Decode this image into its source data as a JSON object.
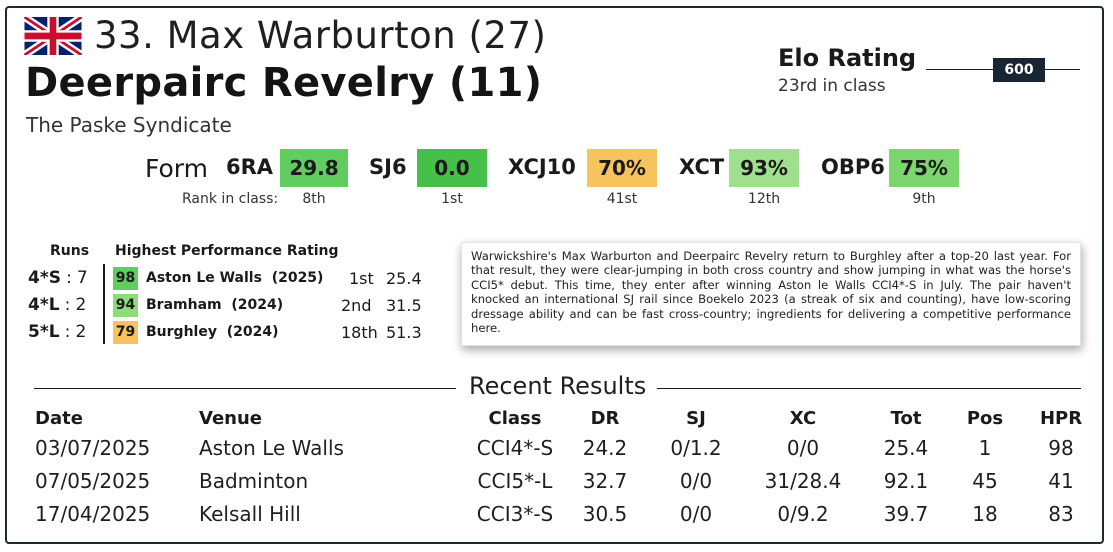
{
  "rider": {
    "title": "33. Max Warburton (27)",
    "country_flag": "uk-flag-icon"
  },
  "horse": {
    "title": "Deerpairc Revelry (11)"
  },
  "owner": "The Paske Syndicate",
  "elo": {
    "title": "Elo Rating",
    "value": "600",
    "rank_text": "23rd in class"
  },
  "form": {
    "label": "Form",
    "rank_label": "Rank in class:",
    "items": [
      {
        "code": "6RA",
        "value": "29.8",
        "rank": "8th",
        "color": "#5fce5f"
      },
      {
        "code": "SJ6",
        "value": "0.0",
        "rank": "1st",
        "color": "#46c04a"
      },
      {
        "code": "XCJ10",
        "value": "70%",
        "rank": "41st",
        "color": "#f7c35c"
      },
      {
        "code": "XCT",
        "value": "93%",
        "rank": "12th",
        "color": "#9fdf8e"
      },
      {
        "code": "OBP6",
        "value": "75%",
        "rank": "9th",
        "color": "#7ad66d"
      }
    ]
  },
  "runs": {
    "header": "Runs",
    "rows": [
      {
        "level": "4*S",
        "sep": ":",
        "count": "7"
      },
      {
        "level": "4*L",
        "sep": ":",
        "count": "2"
      },
      {
        "level": "5*L",
        "sep": ":",
        "count": "2"
      }
    ]
  },
  "hpr": {
    "header": "Highest Performance Rating",
    "rows": [
      {
        "hpr": "98",
        "event": "Aston Le Walls",
        "year": "(2025)",
        "pos": "1st",
        "score": "25.4",
        "color": "#5fce5f"
      },
      {
        "hpr": "94",
        "event": "Bramham",
        "year": "(2024)",
        "pos": "2nd",
        "score": "31.5",
        "color": "#8fda7d"
      },
      {
        "hpr": "79",
        "event": "Burghley",
        "year": "(2024)",
        "pos": "18th",
        "score": "51.3",
        "color": "#f7c35c"
      }
    ]
  },
  "blurb": "Warwickshire's Max Warburton and Deerpairc Revelry return to Burghley after a top-20 last year. For that result, they were clear-jumping in both cross country and show jumping in what was the horse's CCI5* debut. This time, they enter after winning Aston le Walls CCI4*-S in July. The pair haven't knocked an international SJ rail since Boekelo 2023 (a streak of six and counting), have low-scoring dressage ability and can be fast cross-country; ingredients for delivering a competitive performance here.",
  "recent": {
    "title": "Recent Results",
    "columns": [
      "Date",
      "Venue",
      "Class",
      "DR",
      "SJ",
      "XC",
      "Tot",
      "Pos",
      "HPR"
    ],
    "rows": [
      [
        "03/07/2025",
        "Aston Le Walls",
        "CCI4*-S",
        "24.2",
        "0/1.2",
        "0/0",
        "25.4",
        "1",
        "98"
      ],
      [
        "07/05/2025",
        "Badminton",
        "CCI5*-L",
        "32.7",
        "0/0",
        "31/28.4",
        "92.1",
        "45",
        "41"
      ],
      [
        "17/04/2025",
        "Kelsall Hill",
        "CCI3*-S",
        "30.5",
        "0/0",
        "0/9.2",
        "39.7",
        "18",
        "83"
      ]
    ]
  }
}
